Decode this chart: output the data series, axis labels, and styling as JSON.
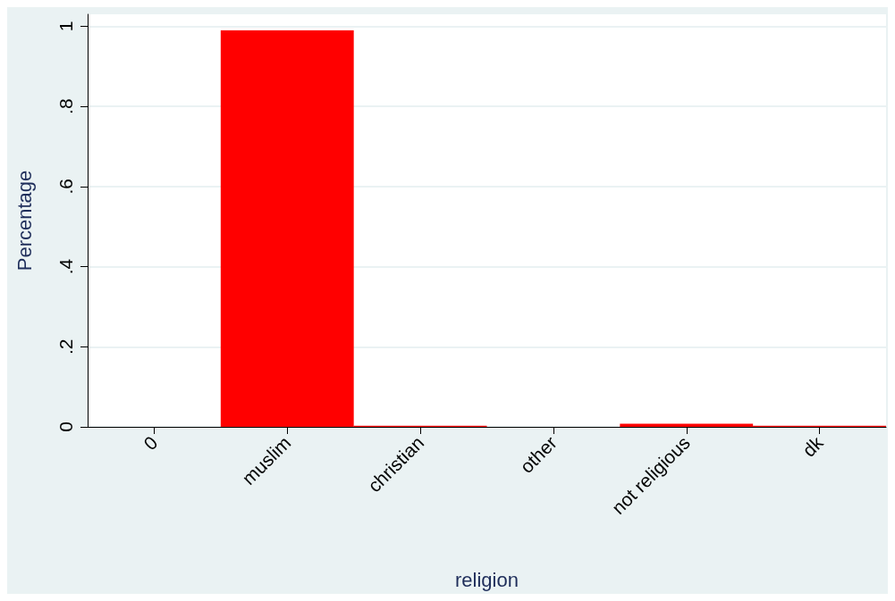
{
  "chart_data": {
    "type": "bar",
    "xlabel": "religion",
    "ylabel": "Percentage",
    "categories": [
      "0",
      "muslim",
      "christian",
      "other",
      "not religious",
      "dk"
    ],
    "series": [
      {
        "color": "#ff0000",
        "values": [
          0,
          0.99,
          0.003,
          0,
          0.008,
          0.003
        ]
      }
    ],
    "ylim": [
      0,
      1.03
    ],
    "yticks": [
      0,
      {
        "value": 0.2,
        "label": ".2"
      },
      {
        "value": 0.4,
        "label": ".4"
      },
      {
        "value": 0.6,
        "label": ".6"
      },
      {
        "value": 0.8,
        "label": ".8"
      },
      1
    ],
    "grid": "y"
  }
}
